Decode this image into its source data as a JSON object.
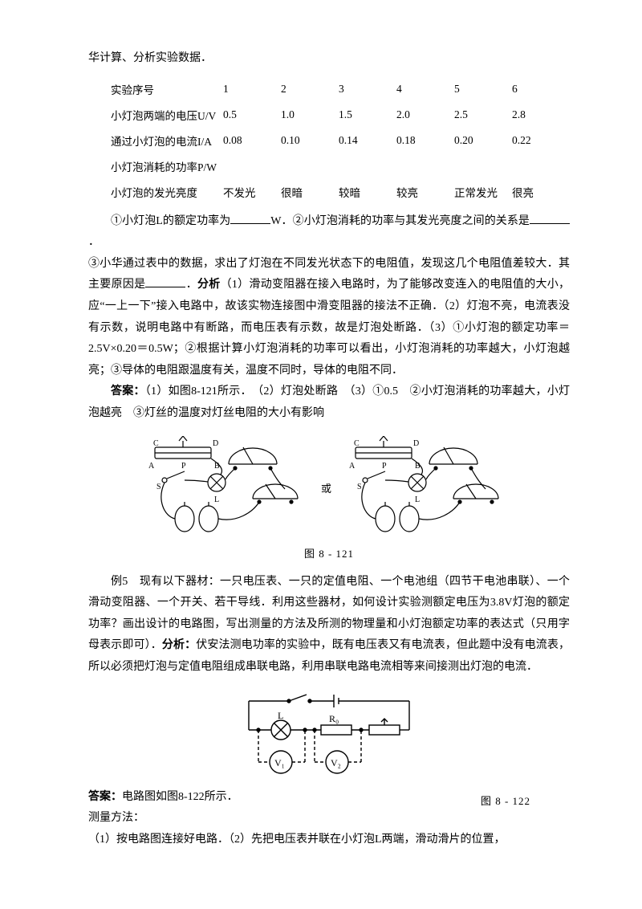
{
  "topline": "华计算、分析实验数据．",
  "table": {
    "rows": [
      {
        "label": "实验序号",
        "cells": [
          "1",
          "2",
          "3",
          "4",
          "5",
          "6"
        ]
      },
      {
        "label": "小灯泡两端的电压U/V",
        "cells": [
          "0.5",
          "1.0",
          "1.5",
          "2.0",
          "2.5",
          "2.8"
        ]
      },
      {
        "label": "通过小灯泡的电流I/A",
        "cells": [
          "0.08",
          "0.10",
          "0.14",
          "0.18",
          "0.20",
          "0.22"
        ]
      },
      {
        "label": "小灯泡消耗的功率P/W",
        "cells": [
          "",
          "",
          "",
          "",
          "",
          ""
        ]
      },
      {
        "label": "小灯泡的发光亮度",
        "cells": [
          "不发光",
          "很暗",
          "较暗",
          "较亮",
          "正常发光",
          "很亮"
        ]
      }
    ]
  },
  "q": {
    "p1a": "①小灯泡L的额定功率为",
    "p1b": "W．②小灯泡消耗的功率与其发光亮度之间的关系是",
    "p1c": "．",
    "p2a": "③小华通过表中的数据，求出了灯泡在不同发光状态下的电阻值，发现这几个电阻值差较大．其主要原因是",
    "p2b": "．",
    "an_label": "分析",
    "an1": "（1）滑动变阻器在接入电路时，为了能够改变连入的电阻值的大小，应“一上一下”接入电路中，故该实物连接图中滑变阻器的接法不正确．（2）灯泡不亮，电流表没有示数，说明电路中有断路，而电压表有示数，故是灯泡处断路．（3）①小灯泡的额定功率＝2.5V×0.20＝0.5W；②根据计算小灯泡消耗的功率可以看出，小灯泡消耗的功率越大，小灯泡越亮；③导体的电阻跟温度有关，温度不同时，导体的电阻不同．",
    "ans_label": "答案：",
    "ans": "（1）如图8-121所示．　（2）灯泡处断路　（3）①0.5　②小灯泡消耗的功率越大，小灯泡越亮　③灯丝的温度对灯丝电阻的大小有影响"
  },
  "fig1": {
    "caption": "图 8 - 121",
    "labels": {
      "C": "C",
      "P": "P",
      "D": "D",
      "A": "A",
      "B": "B",
      "S": "S",
      "L": "L",
      "or": "或"
    }
  },
  "ex5": {
    "label": "例5",
    "text": "　现有以下器材：一只电压表、一只的定值电阻、一个电池组（四节干电池串联）、一个滑动变阻器、一个开关、若干导线．利用这些器材，如何设计实验测额定电压为3.8V灯泡的额定功率？画出设计的电路图，写出测量的方法及所测的物理量和小灯泡额定功率的表达式（只用字母表示即可）．",
    "an_label": "分析：",
    "an": "伏安法测电功率的实验中，既有电压表又有电流表，但此题中没有电流表，所以必须把灯泡与定值电阻组成串联电路，利用串联电路电流相等来间接测出灯泡的电流．",
    "ans_label": "答案：",
    "ans": "电路图如图8-122所示．",
    "method_h": "测量方法：",
    "method": "（1）按电路图连接好电路．（2）先把电压表并联在小灯泡L两端，滑动滑片的位置，"
  },
  "fig2": {
    "caption": "图 8 - 122",
    "labels": {
      "L": "L",
      "R0": "R₀",
      "V1": "V₁",
      "V2": "V₂"
    }
  },
  "style": {
    "stroke": "#000000",
    "dash": "4 3"
  }
}
